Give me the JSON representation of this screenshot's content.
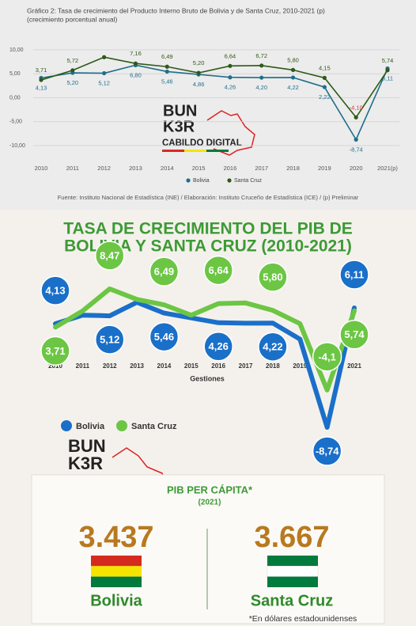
{
  "chart_data": [
    {
      "type": "line",
      "title": "Gráfico 2: Tasa de crecimiento del Producto Interno Bruto de Bolivia y de Santa Cruz, 2010-2021 (p)",
      "subtitle": "(crecimiento porcentual anual)",
      "categories": [
        "2010",
        "2011",
        "2012",
        "2013",
        "2014",
        "2015",
        "2016",
        "2017",
        "2018",
        "2019",
        "2020",
        "2021(p)"
      ],
      "series": [
        {
          "name": "Bolivia",
          "color": "#1f6f8b",
          "values": [
            4.13,
            5.2,
            5.12,
            6.8,
            5.46,
            4.86,
            4.26,
            4.2,
            4.22,
            2.22,
            -8.74,
            6.11
          ],
          "value_labels": [
            "4,13",
            "5,20",
            "5,12",
            "6,80",
            "5,46",
            "4,86",
            "4,26",
            "4,20",
            "4,22",
            "2,22",
            "-8,74",
            "6,11"
          ]
        },
        {
          "name": "Santa Cruz",
          "color": "#2e5a17",
          "values": [
            3.71,
            5.72,
            8.47,
            7.16,
            6.49,
            5.2,
            6.64,
            6.72,
            5.8,
            4.15,
            -4.1,
            5.74
          ],
          "value_labels": [
            "3,71",
            "5,72",
            null,
            "7,16",
            "6,49",
            "5,20",
            "6,64",
            "6,72",
            "5,80",
            "4,15",
            "-4,10",
            "5,74"
          ]
        }
      ],
      "ylim": [
        -10,
        10
      ],
      "yticks": [
        {
          "value": 10,
          "label": "10,00"
        },
        {
          "value": 5,
          "label": "5,00"
        },
        {
          "value": 0,
          "label": "0,00"
        },
        {
          "value": -5,
          "label": "-5,00"
        },
        {
          "value": -10,
          "label": "-10,00"
        }
      ],
      "grid": true,
      "legend": "bottom",
      "source": "Fuente: Instituto Nacional de Estadística (INE) / Elaboración: Instituto Cruceño de Estadística (ICE) / (p) Preliminar"
    },
    {
      "type": "line",
      "title": "TASA DE CRECIMIENTO DEL PIB DE",
      "title2": "BOLIVIA Y SANTA CRUZ (2010-2021)",
      "categories": [
        "2010",
        "2011",
        "2012",
        "2013",
        "2014",
        "2015",
        "2016",
        "2017",
        "2018",
        "2019",
        "2020",
        "2021"
      ],
      "x_label": "Gestiones",
      "series": [
        {
          "name": "Bolivia",
          "color": "#1a6fc9",
          "values": [
            4.13,
            5.2,
            5.12,
            6.8,
            5.46,
            4.86,
            4.26,
            4.2,
            4.22,
            2.22,
            -8.74,
            6.11
          ],
          "value_labels": [
            "4,13",
            null,
            "5,12",
            null,
            "5,46",
            null,
            "4,26",
            null,
            "4,22",
            null,
            "-8,74",
            "6,11"
          ]
        },
        {
          "name": "Santa Cruz",
          "color": "#6cc644",
          "values": [
            3.71,
            5.72,
            8.47,
            7.16,
            6.49,
            5.2,
            6.64,
            6.72,
            5.8,
            4.15,
            -4.1,
            5.74
          ],
          "value_labels": [
            "3,71",
            null,
            "8,47",
            null,
            "6,49",
            null,
            "6,64",
            null,
            "5,80",
            null,
            "-4,1",
            "5,74"
          ]
        }
      ],
      "legend": "bottom-left"
    }
  ],
  "logo": {
    "line1": "BUN",
    "line2": "K3R",
    "tagline": "CABILDO DIGITAL"
  },
  "per_capita": {
    "title": "PIB PER CÁPITA*",
    "year": "(2021)",
    "items": [
      {
        "value": "3.437",
        "name": "Bolivia"
      },
      {
        "value": "3.667",
        "name": "Santa Cruz"
      }
    ],
    "note": "*En dólares estadounidenses"
  }
}
